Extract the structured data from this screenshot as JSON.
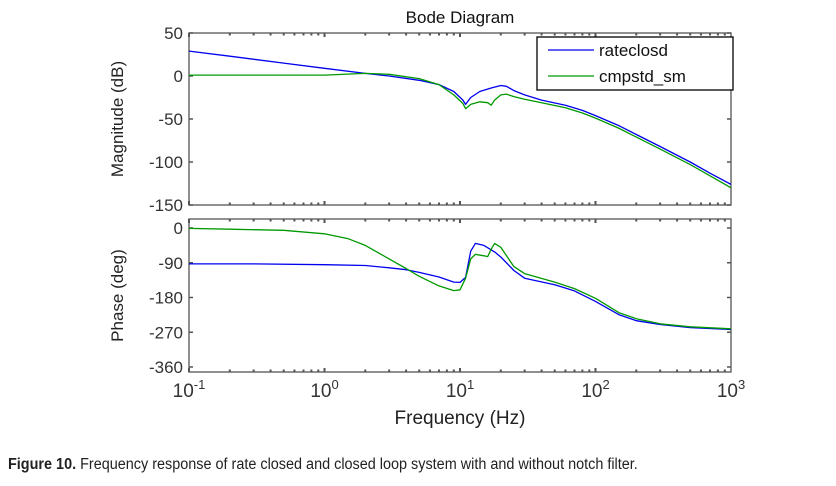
{
  "chart_data": [
    {
      "type": "line",
      "panel": "magnitude",
      "title": "Bode Diagram",
      "xlabel": "",
      "ylabel": "Magnitude (dB)",
      "xscale": "log",
      "xlim": [
        0.1,
        1000
      ],
      "ylim": [
        -150,
        50
      ],
      "yticks": [
        50,
        0,
        -50,
        -100,
        -150
      ],
      "ytick_labels": [
        "50",
        "0",
        "-50",
        "-100",
        "-150"
      ],
      "grid": false,
      "legend": {
        "position": "top-right",
        "entries": [
          "rateclosd",
          "cmpstd_sm"
        ]
      },
      "series": [
        {
          "name": "rateclosd",
          "color": "#0000ee",
          "x": [
            0.1,
            0.2,
            0.5,
            1,
            2,
            3,
            5,
            7,
            9,
            10.5,
            11,
            12,
            14,
            17,
            20,
            22,
            25,
            30,
            40,
            60,
            80,
            100,
            150,
            200,
            300,
            500,
            700,
            1000
          ],
          "y": [
            29,
            23,
            15,
            9,
            3,
            0,
            -5,
            -10,
            -18,
            -28,
            -33,
            -25,
            -18,
            -14,
            -11,
            -12,
            -17,
            -22,
            -28,
            -34,
            -40,
            -46,
            -58,
            -68,
            -82,
            -100,
            -113,
            -126
          ]
        },
        {
          "name": "cmpstd_sm",
          "color": "#009900",
          "x": [
            0.1,
            0.2,
            0.5,
            1,
            2,
            3,
            5,
            7,
            9,
            10.5,
            11,
            12,
            14,
            16,
            17,
            18,
            20,
            22,
            25,
            30,
            40,
            60,
            80,
            100,
            150,
            200,
            300,
            500,
            700,
            1000
          ],
          "y": [
            1,
            1,
            1,
            1,
            3,
            2,
            -3,
            -10,
            -22,
            -32,
            -38,
            -33,
            -30,
            -31,
            -34,
            -28,
            -22,
            -21,
            -24,
            -27,
            -31,
            -37,
            -43,
            -49,
            -61,
            -71,
            -85,
            -103,
            -116,
            -130
          ]
        }
      ]
    },
    {
      "type": "line",
      "panel": "phase",
      "title": "",
      "xlabel": "Frequency  (Hz)",
      "ylabel": "Phase (deg)",
      "xscale": "log",
      "xlim": [
        0.1,
        1000
      ],
      "ylim": [
        -360,
        0
      ],
      "yticks": [
        0,
        -90,
        -180,
        -270,
        -360
      ],
      "ytick_labels": [
        "0",
        "-90",
        "-180",
        "-270",
        "-360"
      ],
      "xticks": [
        0.1,
        1,
        10,
        100,
        1000
      ],
      "xtick_labels": [
        [
          "10",
          "-1"
        ],
        [
          "10",
          "0"
        ],
        [
          "10",
          "1"
        ],
        [
          "10",
          "2"
        ],
        [
          "10",
          "3"
        ]
      ],
      "grid": false,
      "series": [
        {
          "name": "rateclosd",
          "color": "#0000ee",
          "x": [
            0.1,
            0.3,
            1,
            2,
            3,
            4,
            5,
            7,
            9,
            10,
            11,
            12,
            13,
            15,
            18,
            20,
            25,
            30,
            50,
            70,
            100,
            150,
            200,
            300,
            500,
            1000
          ],
          "y": [
            -93,
            -93,
            -95,
            -97,
            -103,
            -108,
            -115,
            -127,
            -140,
            -141,
            -128,
            -60,
            -40,
            -45,
            -62,
            -75,
            -110,
            -130,
            -147,
            -163,
            -190,
            -225,
            -240,
            -250,
            -258,
            -263
          ]
        },
        {
          "name": "cmpstd_sm",
          "color": "#009900",
          "x": [
            0.1,
            0.2,
            0.5,
            1,
            1.5,
            2,
            3,
            4,
            5,
            7,
            9,
            10,
            11,
            12,
            13,
            15,
            16,
            17,
            18,
            20,
            25,
            30,
            50,
            70,
            100,
            150,
            200,
            300,
            500,
            1000
          ],
          "y": [
            -1,
            -3,
            -6,
            -15,
            -28,
            -45,
            -80,
            -105,
            -125,
            -150,
            -162,
            -160,
            -130,
            -80,
            -68,
            -72,
            -74,
            -55,
            -40,
            -50,
            -100,
            -118,
            -140,
            -157,
            -182,
            -220,
            -235,
            -248,
            -256,
            -261
          ]
        }
      ]
    }
  ],
  "caption": {
    "label": "Figure 10.",
    "text": " Frequency response of rate closed and closed loop system with and without notch filter."
  }
}
